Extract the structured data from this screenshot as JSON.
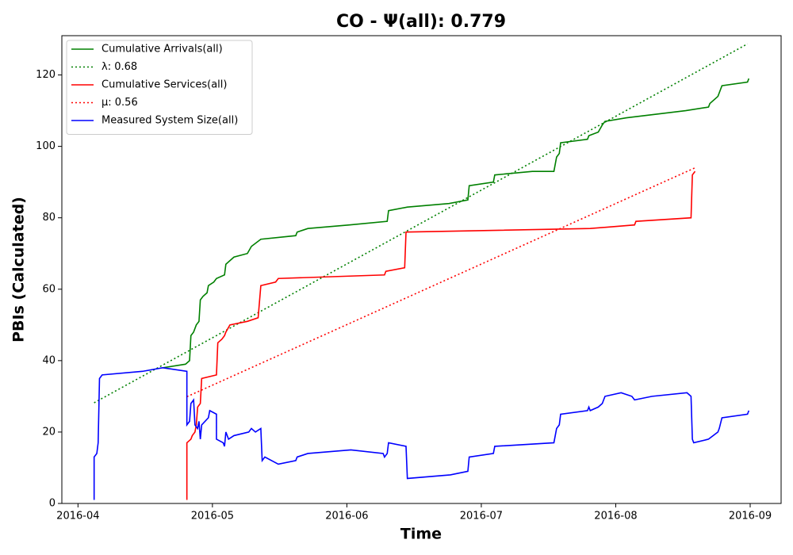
{
  "chart_data": {
    "type": "line",
    "title": "CO -  Ψ(all): 0.779",
    "x_label": "Time",
    "y_label": "PBIs (Calculated)",
    "xlim": [
      3.88,
      9.23
    ],
    "ylim": [
      0,
      131
    ],
    "xticks": [
      {
        "value": 4,
        "label": "2016-04"
      },
      {
        "value": 5,
        "label": "2016-05"
      },
      {
        "value": 6,
        "label": "2016-06"
      },
      {
        "value": 7,
        "label": "2016-07"
      },
      {
        "value": 8,
        "label": "2016-08"
      },
      {
        "value": 9,
        "label": "2016-09"
      }
    ],
    "yticks": [
      0,
      20,
      40,
      60,
      80,
      100,
      120
    ],
    "grid": false,
    "legend": "upper left",
    "series": [
      {
        "name": "Cumulative Arrivals(all)",
        "color": "#008000",
        "dash": "solid",
        "x": [
          4.63,
          4.8,
          4.83,
          4.84,
          4.86,
          4.88,
          4.9,
          4.91,
          4.93,
          4.96,
          4.97,
          5.01,
          5.03,
          5.09,
          5.1,
          5.16,
          5.26,
          5.29,
          5.36,
          5.62,
          5.63,
          5.71,
          6.02,
          6.3,
          6.31,
          6.45,
          6.76,
          6.9,
          6.91,
          7.09,
          7.1,
          7.38,
          7.54,
          7.56,
          7.58,
          7.59,
          7.79,
          7.8,
          7.87,
          7.9,
          7.92,
          8.08,
          8.52,
          8.69,
          8.7,
          8.76,
          8.79,
          8.98,
          8.99
        ],
        "values": [
          38,
          39,
          40,
          47,
          48,
          50,
          51,
          57,
          58,
          59,
          61,
          62,
          63,
          64,
          67,
          69,
          70,
          72,
          74,
          75,
          76,
          77,
          78,
          79,
          82,
          83,
          84,
          85,
          89,
          90,
          92,
          93,
          93,
          97,
          98,
          101,
          102,
          103,
          104,
          106,
          107,
          108,
          110,
          111,
          112,
          114,
          117,
          118,
          119
        ]
      },
      {
        "name": "λ: 0.68",
        "color": "#008000",
        "dash": "dotted",
        "x": [
          4.12,
          8.98
        ],
        "values": [
          28.2,
          128.7
        ]
      },
      {
        "name": "Cumulative Services(all)",
        "color": "#ff0000",
        "dash": "solid",
        "x": [
          4.81,
          4.81,
          4.84,
          4.85,
          4.87,
          4.88,
          4.89,
          4.91,
          4.92,
          5.03,
          5.04,
          5.07,
          5.09,
          5.1,
          5.13,
          5.26,
          5.34,
          5.36,
          5.47,
          5.49,
          6.28,
          6.29,
          6.43,
          6.44,
          7.81,
          8.14,
          8.15,
          8.56,
          8.57,
          8.59
        ],
        "values": [
          1,
          17,
          18,
          19,
          20,
          22,
          27,
          28,
          35,
          36,
          45,
          46,
          47,
          48,
          50,
          51,
          52,
          61,
          62,
          63,
          64,
          65,
          66,
          76,
          77,
          78,
          79,
          80,
          92,
          93
        ]
      },
      {
        "name": "μ: 0.56",
        "color": "#ff0000",
        "dash": "dotted",
        "x": [
          4.81,
          8.59
        ],
        "values": [
          29.9,
          94
        ]
      },
      {
        "name": "Measured System Size(all)",
        "color": "#0000ff",
        "dash": "solid",
        "x": [
          4.12,
          4.12,
          4.14,
          4.15,
          4.16,
          4.18,
          4.48,
          4.63,
          4.81,
          4.81,
          4.83,
          4.84,
          4.86,
          4.87,
          4.89,
          4.9,
          4.91,
          4.92,
          4.97,
          4.98,
          5.03,
          5.03,
          5.08,
          5.09,
          5.1,
          5.12,
          5.16,
          5.27,
          5.29,
          5.32,
          5.36,
          5.37,
          5.39,
          5.49,
          5.62,
          5.63,
          5.71,
          6.03,
          6.27,
          6.28,
          6.3,
          6.31,
          6.44,
          6.45,
          6.77,
          6.9,
          6.91,
          7.09,
          7.1,
          7.54,
          7.56,
          7.58,
          7.59,
          7.79,
          7.8,
          7.81,
          7.87,
          7.9,
          7.92,
          8.04,
          8.12,
          8.14,
          8.27,
          8.53,
          8.56,
          8.57,
          8.58,
          8.69,
          8.76,
          8.77,
          8.79,
          8.98,
          8.99
        ],
        "values": [
          1,
          13,
          14,
          17,
          35,
          36,
          37,
          38,
          37,
          22,
          23,
          28,
          29,
          22,
          21,
          23,
          18,
          22,
          24,
          26,
          25,
          18,
          17,
          16,
          20,
          18,
          19,
          20,
          21,
          20,
          21,
          12,
          13,
          11,
          12,
          13,
          14,
          15,
          14,
          13,
          14,
          17,
          16,
          7,
          8,
          9,
          13,
          14,
          16,
          17,
          21,
          22,
          25,
          26,
          27,
          26,
          27,
          28,
          30,
          31,
          30,
          29,
          30,
          31,
          30,
          18,
          17,
          18,
          20,
          21,
          24,
          25,
          26
        ]
      }
    ]
  }
}
